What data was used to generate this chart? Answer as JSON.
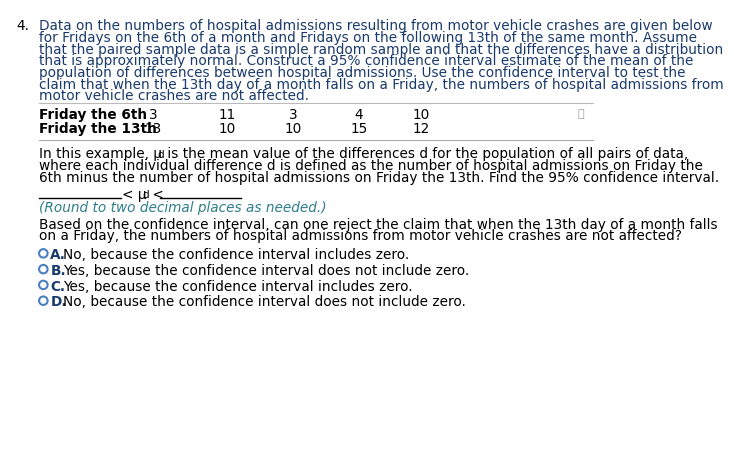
{
  "bg_color": "#ffffff",
  "question_number": "4.",
  "question_text_lines": [
    "Data on the numbers of hospital admissions resulting from motor vehicle crashes are given below",
    "for Fridays on the 6th of a month and Fridays on the following 13th of the same month. Assume",
    "that the paired sample data is a simple random sample and that the differences have a distribution",
    "that is approximately normal. Construct a 95% confidence interval estimate of the mean of the",
    "population of differences between hospital admissions. Use the confidence interval to test the",
    "claim that when the 13th day of a month falls on a Friday, the numbers of hospital admissions from",
    "motor vehicle crashes are not affected."
  ],
  "row1_label": "Friday the 6th",
  "row2_label": "Friday the 13th",
  "row1_values": [
    "3",
    "11",
    "3",
    "4",
    "10"
  ],
  "row2_values": [
    "13",
    "10",
    "10",
    "15",
    "12"
  ],
  "para_line1_before": "In this example, μ",
  "para_line1_sub": "d",
  "para_line1_after": " is the mean value of the differences d for the population of all pairs of data,",
  "para_line2": "where each individual difference d is defined as the number of hospital admissions on Friday the",
  "para_line3": "6th minus the number of hospital admissions on Friday the 13th. Find the 95% confidence interval.",
  "round_note": "(Round to two decimal places as needed.)",
  "based_line1": "Based on the confidence interval, can one reject the claim that when the 13th day of a month falls",
  "based_line2": "on a Friday, the numbers of hospital admissions from motor vehicle crashes are not affected?",
  "option_letters": [
    "A.",
    "B.",
    "C.",
    "D."
  ],
  "option_texts": [
    "No, because the confidence interval includes zero.",
    "Yes, because the confidence interval does not include zero.",
    "Yes, because the confidence interval includes zero.",
    "No, because the confidence interval does not include zero."
  ],
  "text_color": "#000000",
  "navy_color": "#1a3a6b",
  "teal_color": "#2e7d8c",
  "circle_color": "#4a7fc1",
  "option_letter_color": "#1a3a6b",
  "font_size_main": 9.8,
  "font_size_small": 7.5
}
